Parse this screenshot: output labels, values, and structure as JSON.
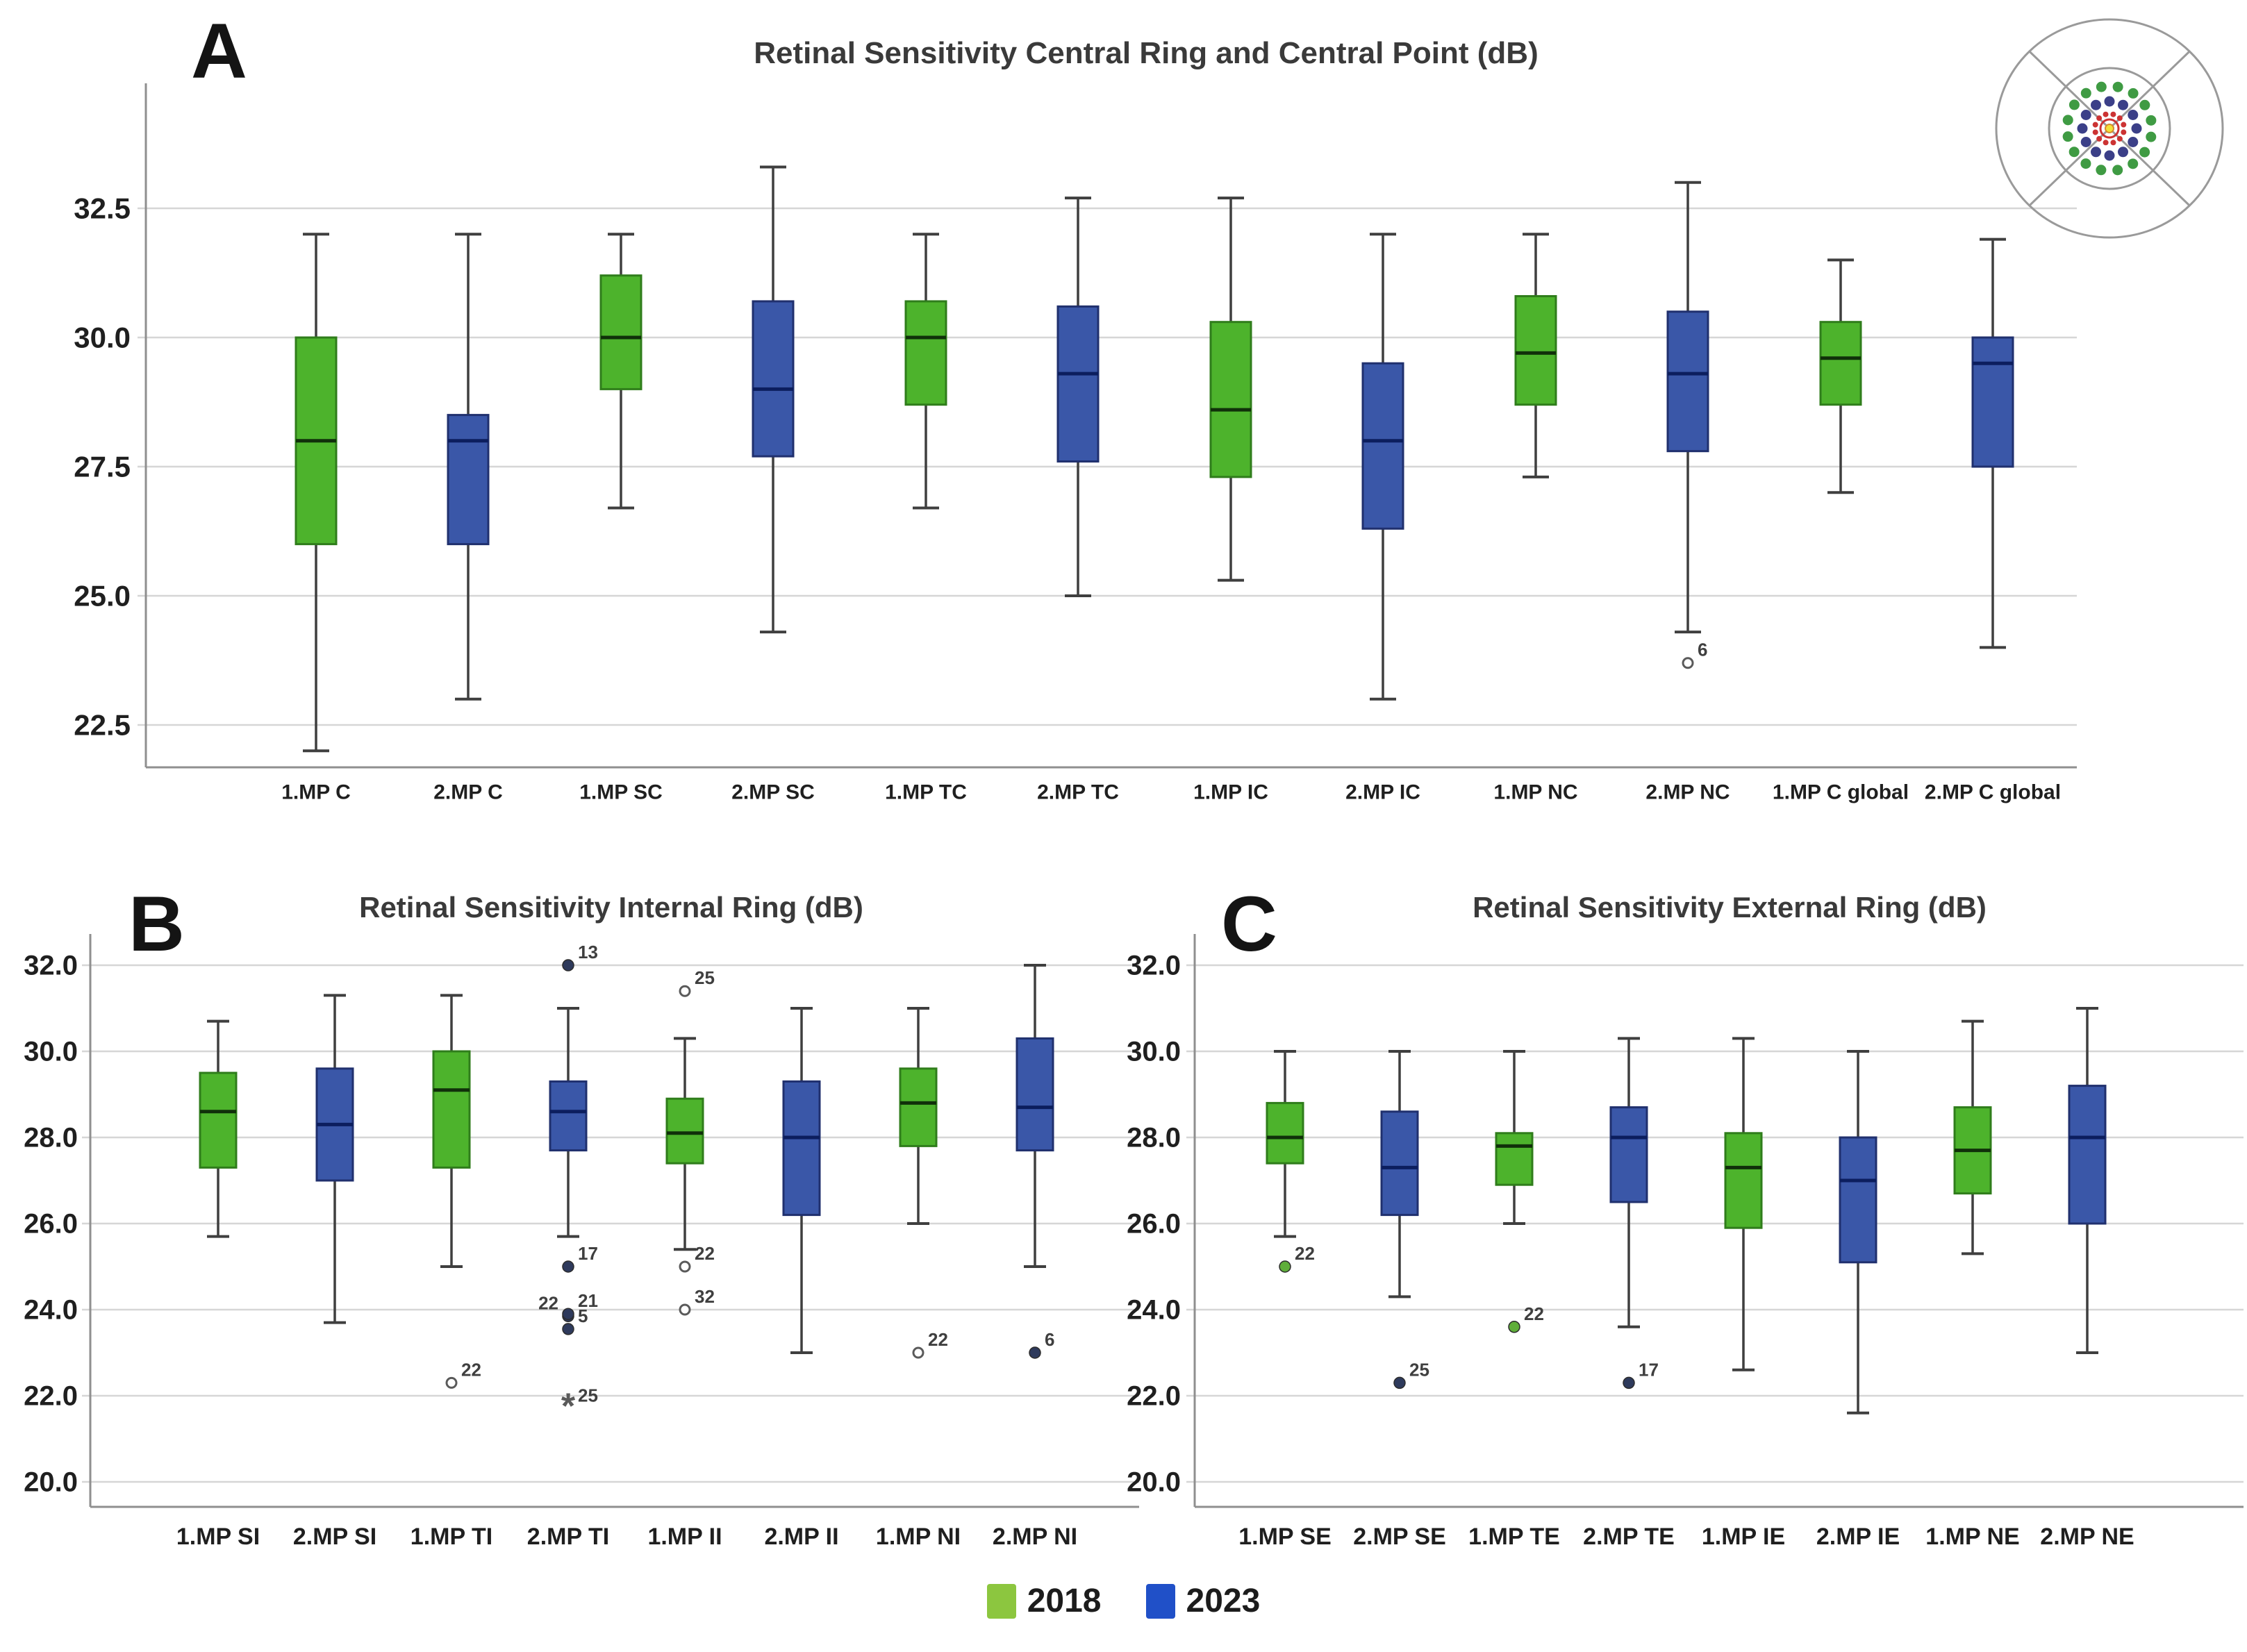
{
  "legend": {
    "items": [
      {
        "label": "2018",
        "color": "#8cc63f"
      },
      {
        "label": "2023",
        "color": "#2050c8"
      }
    ]
  },
  "icon": {
    "name": "macular-test-grid-icon",
    "ring_colors": {
      "outer_dots": "#3f9b43",
      "middle_dots": "#3b3f88",
      "inner_dots": "#cc3333",
      "center": "#f2e23a"
    },
    "outline_color": "#9a9a9a"
  },
  "colors": {
    "2018": {
      "fill": "#4db32c",
      "stroke": "#2f7d1b",
      "median": "#10300a",
      "dot": "#5fae3a"
    },
    "2023": {
      "fill": "#3a57a8",
      "stroke": "#20306e",
      "median": "#0c1e5e",
      "dot": "#2e3a5c"
    },
    "whisker": "#3f3f3f",
    "grid": "#d6d6d6",
    "axis": "#8f8f8f",
    "open_stroke": "#5a5a5a",
    "star": "#5a5a5a",
    "outlier_label": "#3f3f3f",
    "tick_text": "#1f1f1f"
  },
  "chart_data": [
    {
      "type": "boxplot",
      "panel_label": "A",
      "title": "Retinal Sensitivity Central Ring and Central Point (dB)",
      "ylabel": "",
      "ylim": [
        21.8,
        34.4
      ],
      "yticks": [
        32.5,
        30.0,
        27.5,
        25.0,
        22.5
      ],
      "grid": true,
      "boxes": [
        {
          "label": "1.MP C",
          "group": "2018",
          "min": 22.0,
          "q1": 26.0,
          "median": 28.0,
          "q3": 30.0,
          "max": 32.0,
          "outliers": []
        },
        {
          "label": "2.MP C",
          "group": "2023",
          "min": 23.0,
          "q1": 26.0,
          "median": 28.0,
          "q3": 28.5,
          "max": 32.0,
          "outliers": []
        },
        {
          "label": "1.MP SC",
          "group": "2018",
          "min": 26.7,
          "q1": 29.0,
          "median": 30.0,
          "q3": 31.2,
          "max": 32.0,
          "outliers": []
        },
        {
          "label": "2.MP SC",
          "group": "2023",
          "min": 24.3,
          "q1": 27.7,
          "median": 29.0,
          "q3": 30.7,
          "max": 33.3,
          "outliers": []
        },
        {
          "label": "1.MP TC",
          "group": "2018",
          "min": 26.7,
          "q1": 28.7,
          "median": 30.0,
          "q3": 30.7,
          "max": 32.0,
          "outliers": []
        },
        {
          "label": "2.MP TC",
          "group": "2023",
          "min": 25.0,
          "q1": 27.6,
          "median": 29.3,
          "q3": 30.6,
          "max": 32.7,
          "outliers": []
        },
        {
          "label": "1.MP IC",
          "group": "2018",
          "min": 25.3,
          "q1": 27.3,
          "median": 28.6,
          "q3": 30.3,
          "max": 32.7,
          "outliers": []
        },
        {
          "label": "2.MP IC",
          "group": "2023",
          "min": 23.0,
          "q1": 26.3,
          "median": 28.0,
          "q3": 29.5,
          "max": 32.0,
          "outliers": []
        },
        {
          "label": "1.MP NC",
          "group": "2018",
          "min": 27.3,
          "q1": 28.7,
          "median": 29.7,
          "q3": 30.8,
          "max": 32.0,
          "outliers": []
        },
        {
          "label": "2.MP NC",
          "group": "2023",
          "min": 24.3,
          "q1": 27.8,
          "median": 29.3,
          "q3": 30.5,
          "max": 33.0,
          "outliers": [
            {
              "v": 23.7,
              "label": "6",
              "marker": "open"
            }
          ]
        },
        {
          "label": "1.MP C global",
          "group": "2018",
          "min": 27.0,
          "q1": 28.7,
          "median": 29.6,
          "q3": 30.3,
          "max": 31.5,
          "outliers": []
        },
        {
          "label": "2.MP C global",
          "group": "2023",
          "min": 24.0,
          "q1": 27.5,
          "median": 29.5,
          "q3": 30.0,
          "max": 31.9,
          "outliers": []
        }
      ]
    },
    {
      "type": "boxplot",
      "panel_label": "B",
      "title": "Retinal Sensitivity Internal Ring (dB)",
      "ylabel": "",
      "ylim": [
        19.5,
        32.8
      ],
      "yticks": [
        32.0,
        30.0,
        28.0,
        26.0,
        24.0,
        22.0,
        20.0
      ],
      "grid": true,
      "boxes": [
        {
          "label": "1.MP SI",
          "group": "2018",
          "min": 25.7,
          "q1": 27.3,
          "median": 28.6,
          "q3": 29.5,
          "max": 30.7,
          "outliers": []
        },
        {
          "label": "2.MP SI",
          "group": "2023",
          "min": 23.7,
          "q1": 27.0,
          "median": 28.3,
          "q3": 29.6,
          "max": 31.3,
          "outliers": []
        },
        {
          "label": "1.MP TI",
          "group": "2018",
          "min": 25.0,
          "q1": 27.3,
          "median": 29.1,
          "q3": 30.0,
          "max": 31.3,
          "outliers": [
            {
              "v": 22.3,
              "label": "22",
              "marker": "open"
            }
          ]
        },
        {
          "label": "2.MP TI",
          "group": "2023",
          "min": 25.7,
          "q1": 27.7,
          "median": 28.6,
          "q3": 29.3,
          "max": 31.0,
          "outliers": [
            {
              "v": 32.0,
              "label": "13",
              "marker": "dot"
            },
            {
              "v": 25.0,
              "label": "17",
              "marker": "dot"
            },
            {
              "v": 23.85,
              "label": "22",
              "marker": "dot",
              "side": "left"
            },
            {
              "v": 23.9,
              "label": "21",
              "marker": "dot"
            },
            {
              "v": 23.55,
              "label": "5",
              "marker": "dot"
            },
            {
              "v": 21.7,
              "label": "25",
              "marker": "star"
            }
          ]
        },
        {
          "label": "1.MP II",
          "group": "2018",
          "min": 25.4,
          "q1": 27.4,
          "median": 28.1,
          "q3": 28.9,
          "max": 30.3,
          "outliers": [
            {
              "v": 31.4,
              "label": "25",
              "marker": "open"
            },
            {
              "v": 25.0,
              "label": "22",
              "marker": "open"
            },
            {
              "v": 24.0,
              "label": "32",
              "marker": "open"
            }
          ]
        },
        {
          "label": "2.MP II",
          "group": "2023",
          "min": 23.0,
          "q1": 26.2,
          "median": 28.0,
          "q3": 29.3,
          "max": 31.0,
          "outliers": []
        },
        {
          "label": "1.MP NI",
          "group": "2018",
          "min": 26.0,
          "q1": 27.8,
          "median": 28.8,
          "q3": 29.6,
          "max": 31.0,
          "outliers": [
            {
              "v": 23.0,
              "label": "22",
              "marker": "open"
            }
          ]
        },
        {
          "label": "2.MP NI",
          "group": "2023",
          "min": 25.0,
          "q1": 27.7,
          "median": 28.7,
          "q3": 30.3,
          "max": 32.0,
          "outliers": [
            {
              "v": 23.0,
              "label": "6",
              "marker": "dot"
            }
          ]
        }
      ]
    },
    {
      "type": "boxplot",
      "panel_label": "C",
      "title": "Retinal Sensitivity External Ring (dB)",
      "ylabel": "",
      "ylim": [
        19.5,
        32.8
      ],
      "yticks": [
        32.0,
        30.0,
        28.0,
        26.0,
        24.0,
        22.0,
        20.0
      ],
      "grid": true,
      "boxes": [
        {
          "label": "1.MP SE",
          "group": "2018",
          "min": 25.7,
          "q1": 27.4,
          "median": 28.0,
          "q3": 28.8,
          "max": 30.0,
          "outliers": [
            {
              "v": 25.0,
              "label": "22",
              "marker": "gdot"
            }
          ]
        },
        {
          "label": "2.MP SE",
          "group": "2023",
          "min": 24.3,
          "q1": 26.2,
          "median": 27.3,
          "q3": 28.6,
          "max": 30.0,
          "outliers": [
            {
              "v": 22.3,
              "label": "25",
              "marker": "dot"
            }
          ]
        },
        {
          "label": "1.MP TE",
          "group": "2018",
          "min": 26.0,
          "q1": 26.9,
          "median": 27.8,
          "q3": 28.1,
          "max": 30.0,
          "outliers": [
            {
              "v": 23.6,
              "label": "22",
              "marker": "gdot"
            }
          ]
        },
        {
          "label": "2.MP TE",
          "group": "2023",
          "min": 23.6,
          "q1": 26.5,
          "median": 28.0,
          "q3": 28.7,
          "max": 30.3,
          "outliers": [
            {
              "v": 22.3,
              "label": "17",
              "marker": "dot"
            }
          ]
        },
        {
          "label": "1.MP IE",
          "group": "2018",
          "min": 22.6,
          "q1": 25.9,
          "median": 27.3,
          "q3": 28.1,
          "max": 30.3,
          "outliers": []
        },
        {
          "label": "2.MP IE",
          "group": "2023",
          "min": 21.6,
          "q1": 25.1,
          "median": 27.0,
          "q3": 28.0,
          "max": 30.0,
          "outliers": []
        },
        {
          "label": "1.MP NE",
          "group": "2018",
          "min": 25.3,
          "q1": 26.7,
          "median": 27.7,
          "q3": 28.7,
          "max": 30.7,
          "outliers": []
        },
        {
          "label": "2.MP NE",
          "group": "2023",
          "min": 23.0,
          "q1": 26.0,
          "median": 28.0,
          "q3": 29.2,
          "max": 31.0,
          "outliers": []
        }
      ]
    }
  ]
}
